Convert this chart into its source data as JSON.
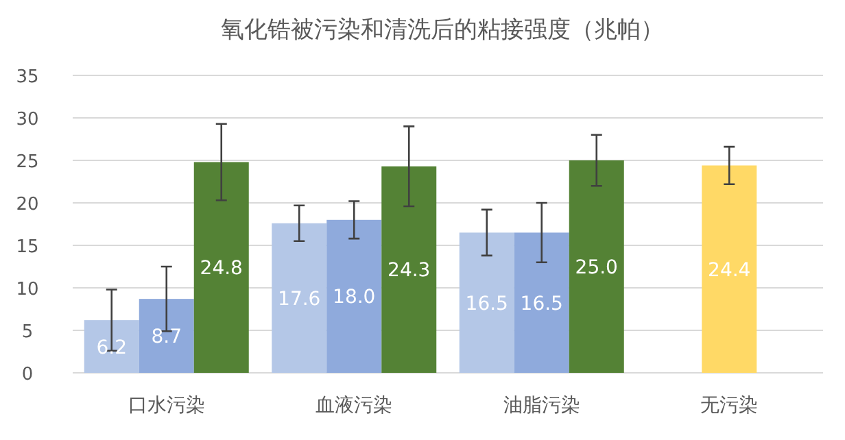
{
  "chart_data": {
    "type": "bar",
    "title": "氧化锆被污染和清洗后的粘接强度（兆帕）",
    "categories": [
      "口水污染",
      "血液污染",
      "油脂污染",
      "无污染"
    ],
    "series": [
      {
        "color": "#b4c7e7",
        "values": [
          6.2,
          17.6,
          16.5,
          null
        ],
        "errors": [
          3.6,
          2.1,
          2.7,
          null
        ],
        "value_labels": [
          "6.2",
          "17.6",
          "16.5",
          null
        ]
      },
      {
        "color": "#8faadc",
        "values": [
          8.7,
          18.0,
          16.5,
          null
        ],
        "errors": [
          3.8,
          2.2,
          3.5,
          null
        ],
        "value_labels": [
          "8.7",
          "18.0",
          "16.5",
          null
        ]
      },
      {
        "color": "#548235",
        "values": [
          24.8,
          24.3,
          25.0,
          null
        ],
        "errors": [
          4.5,
          4.7,
          3.0,
          null
        ],
        "value_labels": [
          "24.8",
          "24.3",
          "25.0",
          null
        ]
      },
      {
        "color": "#ffd966",
        "values": [
          null,
          null,
          null,
          24.4
        ],
        "errors": [
          null,
          null,
          null,
          2.2
        ],
        "value_labels": [
          null,
          null,
          null,
          "24.4"
        ]
      }
    ],
    "ylim": [
      0,
      35
    ],
    "yticks": [
      0,
      5,
      10,
      15,
      20,
      25,
      30,
      35
    ],
    "grid": "y"
  }
}
